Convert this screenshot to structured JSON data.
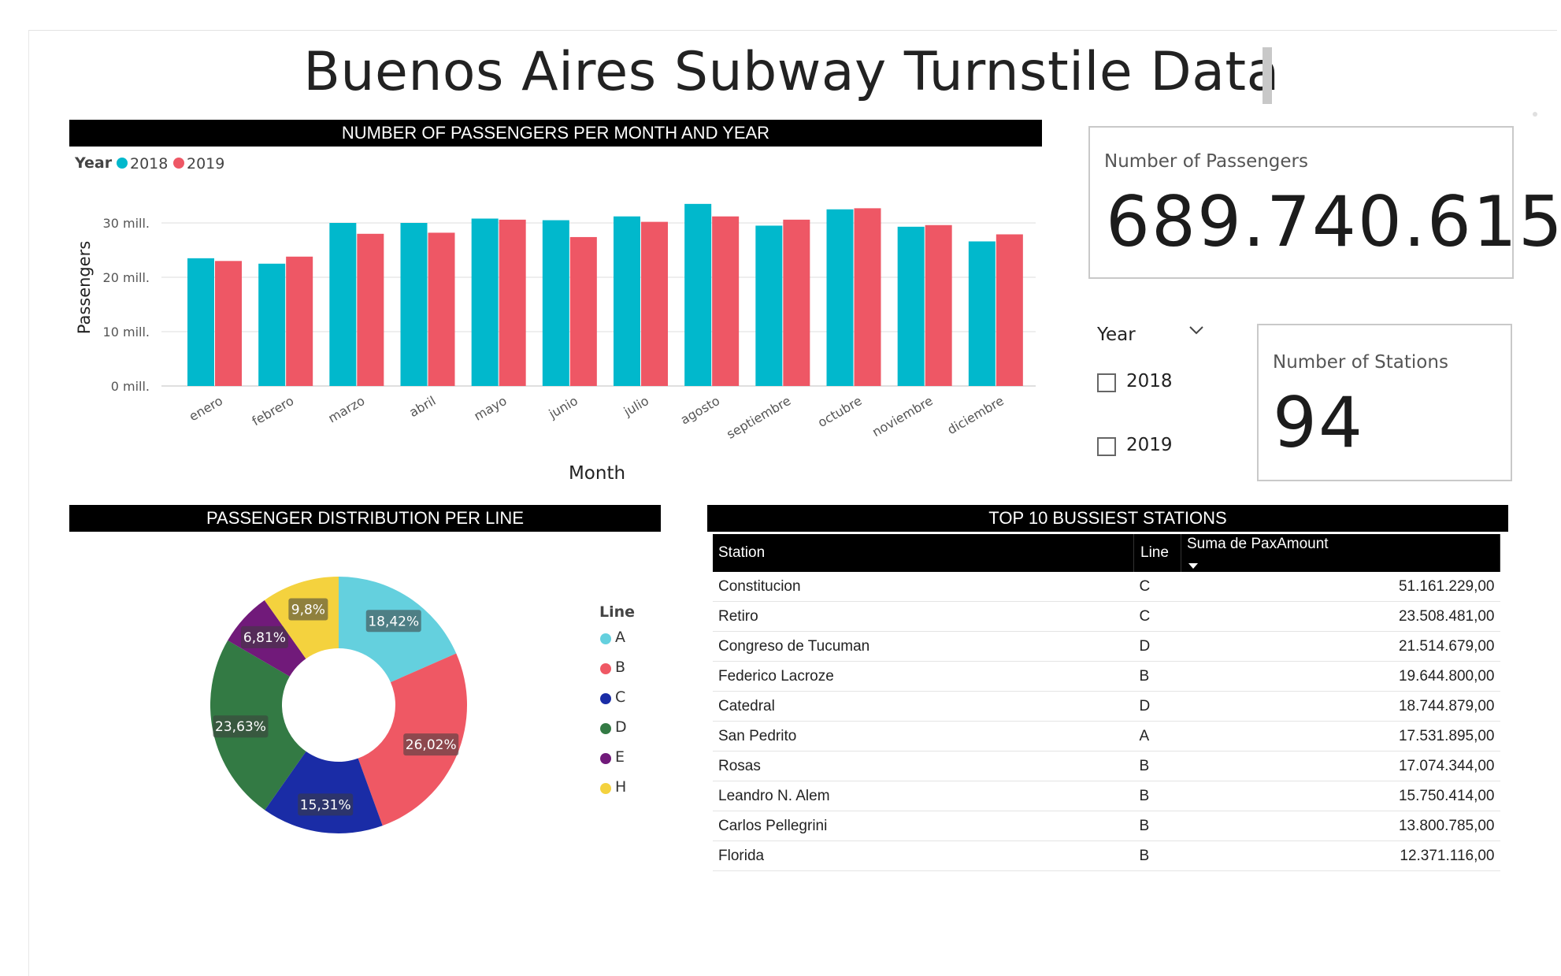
{
  "dashboard": {
    "title": "Buenos Aires Subway Turnstile Data"
  },
  "headers": {
    "monthly": "NUMBER OF PASSENGERS PER MONTH AND YEAR",
    "distribution": "PASSENGER DISTRIBUTION PER LINE",
    "top_stations": "TOP 10 BUSSIEST STATIONS"
  },
  "kpis": {
    "passengers_label": "Number of Passengers",
    "passengers_value": "689.740.615",
    "stations_label": "Number of Stations",
    "stations_value": "94"
  },
  "slicer": {
    "title": "Year",
    "options": [
      "2018",
      "2019"
    ]
  },
  "chart_data": [
    {
      "type": "bar",
      "title": "NUMBER OF PASSENGERS PER MONTH AND YEAR",
      "xlabel": "Month",
      "ylabel": "Passengers",
      "legend_title": "Year",
      "legend_position": "top-left",
      "categories": [
        "enero",
        "febrero",
        "marzo",
        "abril",
        "mayo",
        "junio",
        "julio",
        "agosto",
        "septiembre",
        "octubre",
        "noviembre",
        "diciembre"
      ],
      "series": [
        {
          "name": "2018",
          "color": "#01B8CC",
          "values": [
            23.5,
            22.5,
            30.0,
            30.0,
            30.8,
            30.5,
            31.2,
            33.5,
            29.5,
            32.5,
            29.3,
            26.6
          ]
        },
        {
          "name": "2019",
          "color": "#EE5765",
          "values": [
            23.0,
            23.8,
            28.0,
            28.2,
            30.6,
            27.4,
            30.2,
            31.2,
            30.6,
            32.7,
            29.6,
            27.9
          ]
        }
      ],
      "yticks": [
        "0 mill.",
        "10 mill.",
        "20 mill.",
        "30 mill."
      ],
      "ylim": [
        0,
        35
      ],
      "grid": true
    },
    {
      "type": "pie",
      "title": "PASSENGER DISTRIBUTION PER LINE",
      "legend_title": "Line",
      "legend_position": "right",
      "slices": [
        {
          "label": "A",
          "value": 18.42,
          "text": "18,42%",
          "color": "#64D0DE"
        },
        {
          "label": "B",
          "value": 26.02,
          "text": "26,02%",
          "color": "#EF5864"
        },
        {
          "label": "C",
          "value": 15.31,
          "text": "15,31%",
          "color": "#1A2CA6"
        },
        {
          "label": "D",
          "value": 23.63,
          "text": "23,63%",
          "color": "#337A44"
        },
        {
          "label": "E",
          "value": 6.81,
          "text": "6,81%",
          "color": "#711A7A"
        },
        {
          "label": "H",
          "value": 9.8,
          "text": "9,8%",
          "color": "#F4D23E"
        }
      ]
    },
    {
      "type": "table",
      "title": "TOP 10 BUSSIEST STATIONS",
      "columns": [
        "Station",
        "Line",
        "Suma de PaxAmount"
      ],
      "rows": [
        [
          "Constitucion",
          "C",
          "51.161.229,00"
        ],
        [
          "Retiro",
          "C",
          "23.508.481,00"
        ],
        [
          "Congreso de Tucuman",
          "D",
          "21.514.679,00"
        ],
        [
          "Federico Lacroze",
          "B",
          "19.644.800,00"
        ],
        [
          "Catedral",
          "D",
          "18.744.879,00"
        ],
        [
          "San Pedrito",
          "A",
          "17.531.895,00"
        ],
        [
          "Rosas",
          "B",
          "17.074.344,00"
        ],
        [
          "Leandro N. Alem",
          "B",
          "15.750.414,00"
        ],
        [
          "Carlos Pellegrini",
          "B",
          "13.800.785,00"
        ],
        [
          "Florida",
          "B",
          "12.371.116,00"
        ]
      ]
    }
  ]
}
